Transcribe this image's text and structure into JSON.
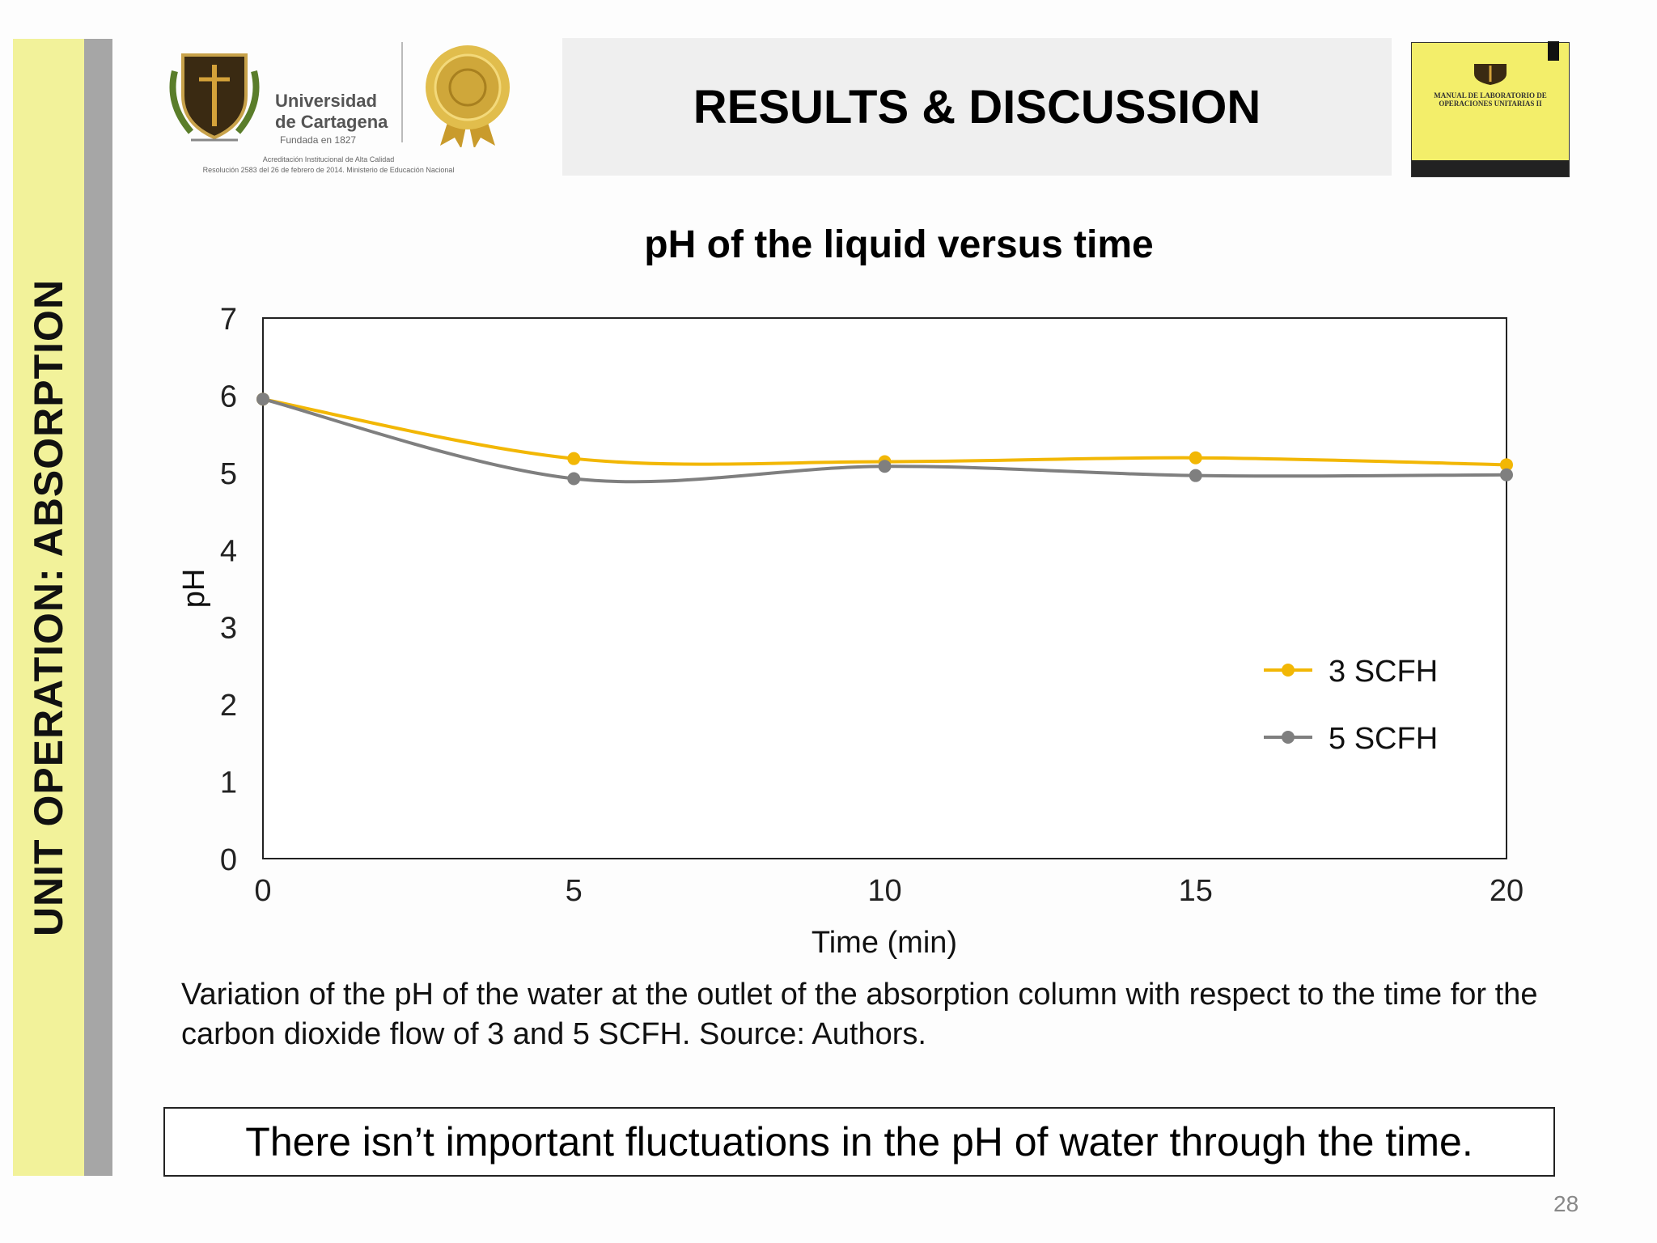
{
  "sidebar": {
    "label": "UNIT OPERATION: ABSORPTION"
  },
  "header": {
    "university_name_line1": "Universidad",
    "university_name_line2": "de Cartagena",
    "university_founded": "Fundada en 1827",
    "accreditation_line1": "Acreditación Institucional de Alta Calidad",
    "accreditation_line2": "Resolución 2583 del 26 de febrero de 2014. Ministerio de Educación Nacional",
    "title": "RESULTS & DISCUSSION",
    "book_title": "MANUAL DE LABORATORIO DE OPERACIONES UNITARIAS II"
  },
  "chart_data": {
    "type": "line",
    "title": "pH of the liquid versus time",
    "xlabel": "Time (min)",
    "ylabel": "pH",
    "x": [
      0,
      5,
      10,
      15,
      20
    ],
    "xlim": [
      0,
      20
    ],
    "ylim": [
      0,
      7
    ],
    "xticks": [
      "0",
      "5",
      "10",
      "15",
      "20"
    ],
    "yticks": [
      "0",
      "1",
      "2",
      "3",
      "4",
      "5",
      "6",
      "7"
    ],
    "grid": false,
    "smoothed": true,
    "legend_position": "right",
    "series": [
      {
        "name": "3 SCFH",
        "color": "#f2b705",
        "values": [
          5.95,
          5.18,
          5.14,
          5.19,
          5.1
        ]
      },
      {
        "name": "5 SCFH",
        "color": "#7f7f7f",
        "values": [
          5.95,
          4.92,
          5.08,
          4.96,
          4.97
        ]
      }
    ]
  },
  "caption": "Variation of the pH of the water at the outlet of the absorption column with respect to the time for the carbon dioxide flow of 3 and 5 SCFH. Source: Authors.",
  "note": "There isn’t important fluctuations in the pH of water through the time.",
  "page_number": "28",
  "colors": {
    "sidebar_yellow": "#f2f29a",
    "sidebar_gray": "#a6a6a6",
    "title_bg": "#efefef"
  }
}
